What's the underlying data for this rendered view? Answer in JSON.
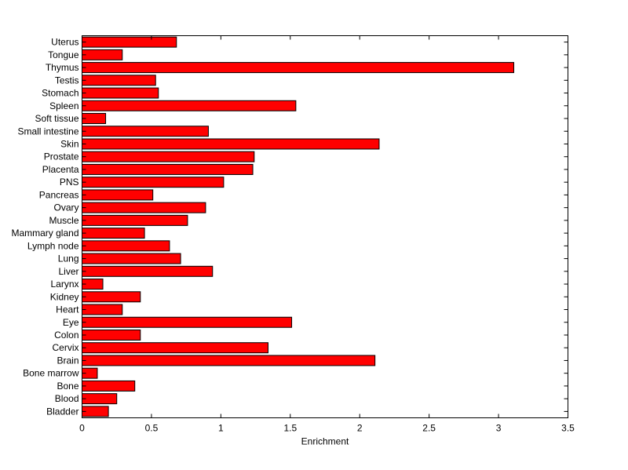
{
  "chart_data": {
    "type": "bar",
    "orientation": "horizontal",
    "title": "",
    "xlabel": "Enrichment",
    "ylabel": "",
    "xlim": [
      0,
      3.5
    ],
    "xticks": [
      0,
      0.5,
      1,
      1.5,
      2,
      2.5,
      3,
      3.5
    ],
    "grid": false,
    "legend": "none",
    "bar_color": "#ff0000",
    "categories": [
      "Bladder",
      "Blood",
      "Bone",
      "Bone marrow",
      "Brain",
      "Cervix",
      "Colon",
      "Eye",
      "Heart",
      "Kidney",
      "Larynx",
      "Liver",
      "Lung",
      "Lymph node",
      "Mammary gland",
      "Muscle",
      "Ovary",
      "Pancreas",
      "PNS",
      "Placenta",
      "Prostate",
      "Skin",
      "Small intestine",
      "Soft tissue",
      "Spleen",
      "Stomach",
      "Testis",
      "Thymus",
      "Tongue",
      "Uterus"
    ],
    "values": [
      0.19,
      0.25,
      0.38,
      0.11,
      2.11,
      1.34,
      0.42,
      1.51,
      0.29,
      0.42,
      0.15,
      0.94,
      0.71,
      0.63,
      0.45,
      0.76,
      0.89,
      0.51,
      1.02,
      1.23,
      1.24,
      2.14,
      0.91,
      0.17,
      1.54,
      0.55,
      0.53,
      3.11,
      0.29,
      0.68
    ]
  }
}
